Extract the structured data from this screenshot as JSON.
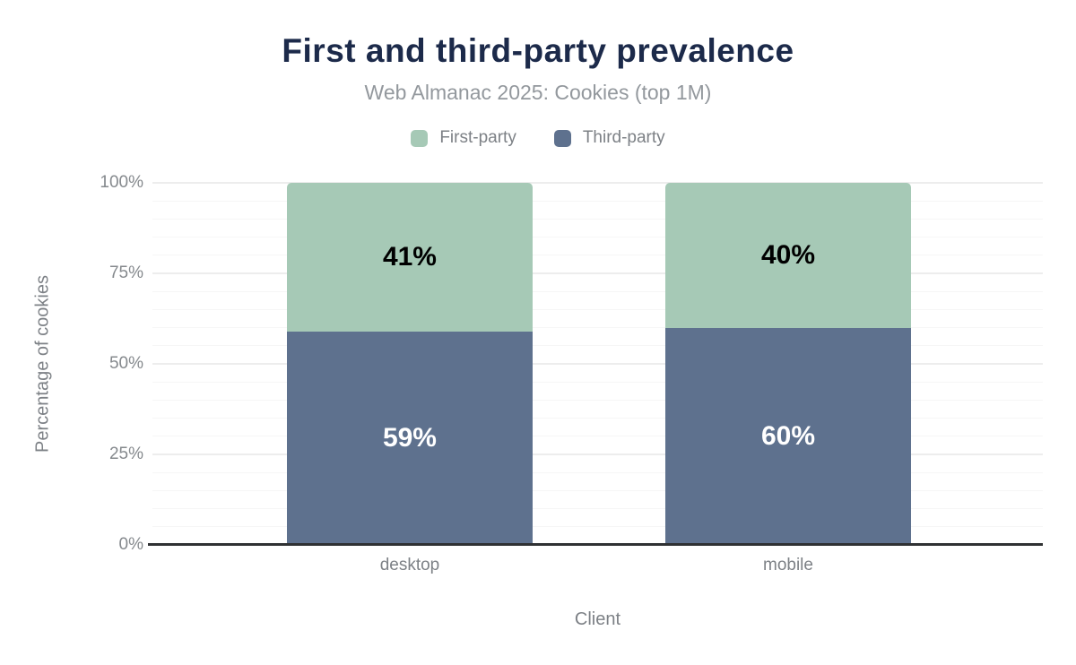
{
  "chart_data": {
    "type": "bar",
    "stacked": true,
    "title": "First and third-party prevalence",
    "subtitle": "Web Almanac 2025: Cookies (top 1M)",
    "xlabel": "Client",
    "ylabel": "Percentage of cookies",
    "categories": [
      "desktop",
      "mobile"
    ],
    "series": [
      {
        "name": "First-party",
        "color": "#a6c9b6",
        "label_color": "#000000",
        "values": [
          41,
          40
        ]
      },
      {
        "name": "Third-party",
        "color": "#5e718e",
        "label_color": "#ffffff",
        "values": [
          59,
          60
        ]
      }
    ],
    "value_suffix": "%",
    "ylim": [
      0,
      100
    ],
    "y_ticks": [
      {
        "value": 0,
        "label": "0%"
      },
      {
        "value": 25,
        "label": "25%"
      },
      {
        "value": 50,
        "label": "50%"
      },
      {
        "value": 75,
        "label": "75%"
      },
      {
        "value": 100,
        "label": "100%"
      }
    ],
    "grid": {
      "minor_step": 5,
      "major_step": 25,
      "visible": true
    },
    "legend_position": "top"
  },
  "colors": {
    "title": "#1c2a4a",
    "subtitle": "#93989d",
    "axis_text": "#7d8186",
    "axis_line": "#2f3133"
  }
}
